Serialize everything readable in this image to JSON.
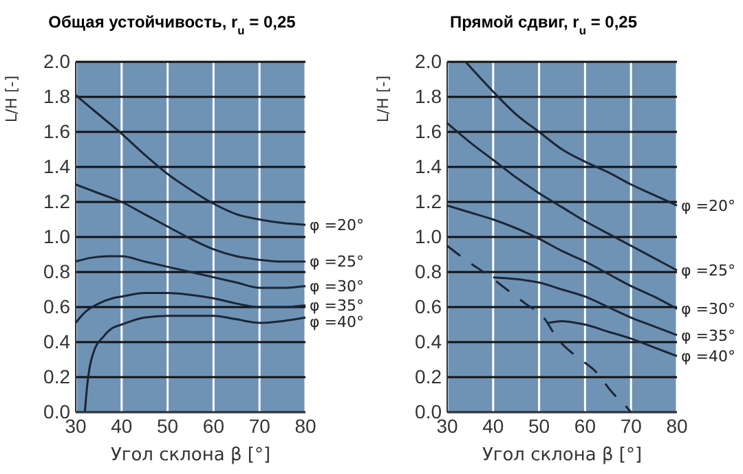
{
  "chart_data": [
    {
      "type": "line",
      "title": "Общая устойчивость, r$_{u}$ = 0,25",
      "xlabel": "Угол склона β [°]",
      "ylabel": "L/H [-]",
      "xlim": [
        30,
        80
      ],
      "xticks": [
        30,
        40,
        50,
        60,
        70,
        80
      ],
      "ylim": [
        0,
        2
      ],
      "yticks": [
        {
          "value": 0,
          "label": "0.0"
        },
        0.2,
        0.4,
        0.6,
        0.8,
        {
          "value": 1,
          "label": "1.0"
        },
        1.2,
        1.4,
        1.6,
        1.8,
        {
          "value": 2,
          "label": "2.0"
        }
      ],
      "grid": true,
      "line_style": "solid",
      "series": [
        {
          "name": "φ =20°",
          "color": "#1c2636",
          "x": [
            30,
            35,
            40,
            45,
            50,
            55,
            60,
            65,
            70,
            75,
            80
          ],
          "values": [
            1.81,
            1.7,
            1.59,
            1.47,
            1.36,
            1.27,
            1.19,
            1.13,
            1.1,
            1.08,
            1.07
          ]
        },
        {
          "name": "φ =25°",
          "color": "#1c2636",
          "x": [
            30,
            35,
            40,
            45,
            50,
            55,
            60,
            65,
            70,
            75,
            80
          ],
          "values": [
            1.3,
            1.25,
            1.2,
            1.13,
            1.06,
            0.99,
            0.93,
            0.89,
            0.87,
            0.86,
            0.86
          ]
        },
        {
          "name": "φ =30°",
          "color": "#1c2636",
          "x": [
            30,
            33,
            37,
            40,
            45,
            50,
            55,
            60,
            65,
            70,
            75,
            80
          ],
          "values": [
            0.86,
            0.88,
            0.89,
            0.89,
            0.86,
            0.83,
            0.8,
            0.77,
            0.74,
            0.71,
            0.71,
            0.72
          ]
        },
        {
          "name": "φ =35°",
          "color": "#1c2636",
          "x": [
            30,
            32,
            35,
            38,
            40,
            45,
            50,
            55,
            60,
            65,
            70,
            75,
            80
          ],
          "values": [
            0.51,
            0.57,
            0.62,
            0.65,
            0.66,
            0.68,
            0.68,
            0.67,
            0.65,
            0.62,
            0.6,
            0.6,
            0.61
          ]
        },
        {
          "name": "φ =40°",
          "color": "#1c2636",
          "x": [
            32,
            32.5,
            33,
            34,
            36,
            38,
            40,
            45,
            50,
            55,
            60,
            65,
            70,
            75,
            80
          ],
          "values": [
            0,
            0.15,
            0.25,
            0.35,
            0.43,
            0.48,
            0.5,
            0.54,
            0.55,
            0.55,
            0.55,
            0.53,
            0.51,
            0.52,
            0.54
          ]
        }
      ]
    },
    {
      "type": "line",
      "title": "Прямой сдвиг, r$_{u}$ = 0,25",
      "xlabel": "Угол склона β [°]",
      "ylabel": "L/H [-]",
      "xlim": [
        30,
        80
      ],
      "xticks": [
        30,
        40,
        50,
        60,
        70,
        80
      ],
      "ylim": [
        0,
        2
      ],
      "yticks": [
        {
          "value": 0,
          "label": "0.0"
        },
        0.2,
        0.4,
        0.6,
        0.8,
        {
          "value": 1,
          "label": "1.0"
        },
        1.2,
        1.4,
        1.6,
        1.8,
        {
          "value": 2,
          "label": "2.0"
        }
      ],
      "grid": true,
      "line_style": "solid",
      "series": [
        {
          "name": "φ =20°",
          "color": "#1c2636",
          "x": [
            34,
            40,
            45,
            50,
            55,
            60,
            65,
            70,
            75,
            80
          ],
          "values": [
            2,
            1.83,
            1.7,
            1.6,
            1.5,
            1.43,
            1.37,
            1.3,
            1.24,
            1.18
          ]
        },
        {
          "name": "φ =25°",
          "color": "#1c2636",
          "x": [
            30,
            35,
            40,
            45,
            50,
            55,
            60,
            65,
            70,
            75,
            80
          ],
          "values": [
            1.65,
            1.54,
            1.44,
            1.34,
            1.25,
            1.17,
            1.09,
            1.02,
            0.95,
            0.88,
            0.81
          ]
        },
        {
          "name": "φ =30°",
          "color": "#1c2636",
          "x": [
            30,
            35,
            40,
            45,
            50,
            55,
            60,
            65,
            70,
            75,
            80
          ],
          "values": [
            1.18,
            1.14,
            1.1,
            1.05,
            0.99,
            0.92,
            0.86,
            0.79,
            0.72,
            0.66,
            0.59
          ]
        },
        {
          "name": "φ =35°",
          "color": "#1c2636",
          "x": [
            40,
            45,
            50,
            55,
            60,
            65,
            70,
            75,
            80
          ],
          "values": [
            0.77,
            0.76,
            0.74,
            0.7,
            0.66,
            0.6,
            0.54,
            0.49,
            0.44
          ]
        },
        {
          "name": "φ =40°",
          "color": "#1c2636",
          "x": [
            52,
            55,
            58,
            60,
            65,
            70,
            75,
            80
          ],
          "values": [
            0.51,
            0.52,
            0.51,
            0.5,
            0.46,
            0.42,
            0.37,
            0.32
          ]
        },
        {
          "color": "#1c2636",
          "line_style": "dashed",
          "x": [
            30,
            34,
            39,
            43,
            47,
            51,
            54,
            58,
            62,
            66,
            69,
            70
          ],
          "values": [
            0.95,
            0.87,
            0.78,
            0.7,
            0.62,
            0.54,
            0.42,
            0.32,
            0.24,
            0.11,
            0.03,
            0
          ]
        }
      ]
    }
  ]
}
